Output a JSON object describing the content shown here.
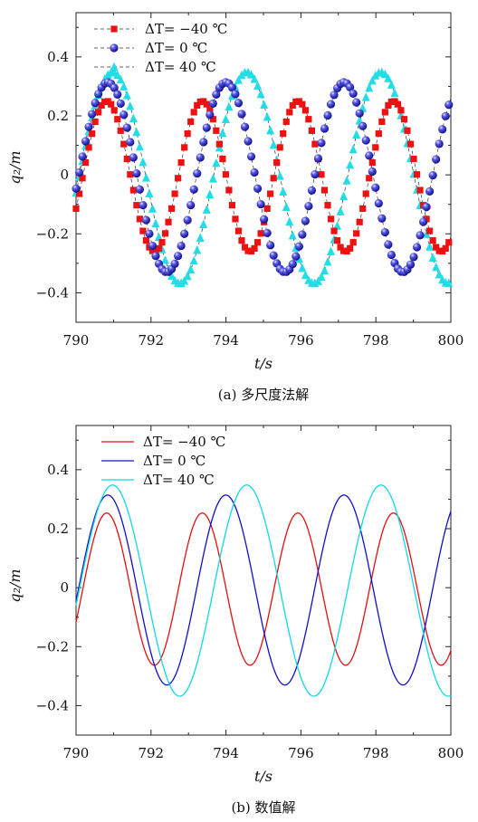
{
  "chart_data": [
    {
      "type": "scatter",
      "caption": "(a) 多尺度法解",
      "xlabel": "t/s",
      "ylabel": "q₂/m",
      "xlim": [
        790,
        800
      ],
      "ylim": [
        -0.5,
        0.55
      ],
      "xticks": [
        "790",
        "792",
        "794",
        "796",
        "798",
        "800"
      ],
      "yticks": [
        "−0.4",
        "−0.2",
        "0",
        "0.2",
        "0.4"
      ],
      "grid": false,
      "legend_position": "top-left",
      "series": [
        {
          "name": "ΔT= −40 ℃",
          "marker": "square",
          "color": "#ee1111",
          "amplitude": 0.255,
          "period": 2.55,
          "phase_t0": 790.18,
          "offset": -0.005,
          "t_start": 790.0,
          "t_end": 800.0,
          "step": 0.085
        },
        {
          "name": "ΔT= 0 ℃",
          "marker": "sphere",
          "color": "#2a2acc",
          "amplitude": 0.322,
          "period": 3.15,
          "phase_t0": 790.06,
          "offset": -0.008,
          "t_start": 790.0,
          "t_end": 800.0,
          "step": 0.085
        },
        {
          "name": "ΔT= 40 ℃",
          "marker": "triangle",
          "color": "#22dde6",
          "amplitude": 0.358,
          "period": 3.58,
          "phase_t0": 790.08,
          "offset": -0.01,
          "t_start": 790.0,
          "t_end": 800.0,
          "step": 0.085
        }
      ]
    },
    {
      "type": "line",
      "caption": "(b) 数值解",
      "xlabel": "t/s",
      "ylabel": "q₂/m",
      "xlim": [
        790,
        800
      ],
      "ylim": [
        -0.5,
        0.55
      ],
      "xticks": [
        "790",
        "792",
        "794",
        "796",
        "798",
        "800"
      ],
      "yticks": [
        "−0.4",
        "−0.2",
        "0",
        "0.2",
        "0.4"
      ],
      "grid": false,
      "legend_position": "top-left",
      "series": [
        {
          "name": "ΔT= −40 ℃",
          "color": "#e01010",
          "amplitude": 0.258,
          "period": 2.55,
          "phase_t0": 790.18,
          "offset": -0.005
        },
        {
          "name": "ΔT= 0 ℃",
          "color": "#1010c8",
          "amplitude": 0.322,
          "period": 3.15,
          "phase_t0": 790.06,
          "offset": -0.008
        },
        {
          "name": "ΔT= 40 ℃",
          "color": "#10d8e6",
          "amplitude": 0.358,
          "period": 3.58,
          "phase_t0": 790.08,
          "offset": -0.01
        }
      ]
    }
  ]
}
